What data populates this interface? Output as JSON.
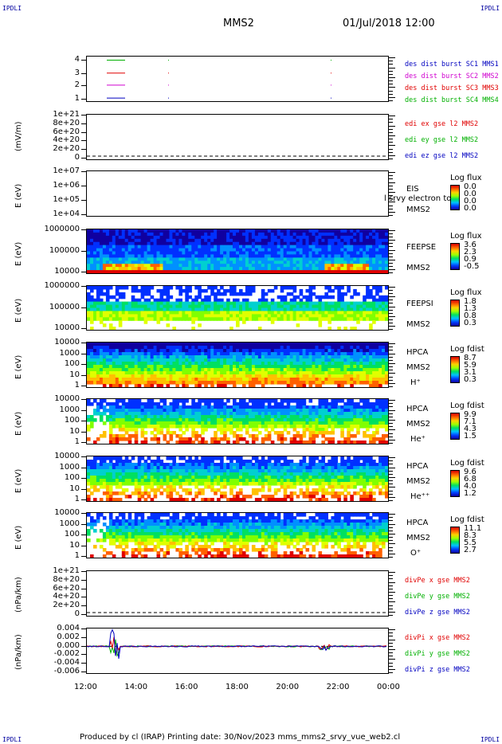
{
  "corner_label": "IPDLI",
  "header": {
    "title": "MMS2",
    "datetime": "01/Jul/2018 12:00"
  },
  "footer": {
    "text": "Produced by cl (IRAP)   Printing date: 30/Nov/2023   mms_mms2_srvy_vue_web2.cl"
  },
  "colors": {
    "red": "#e00000",
    "green": "#00b000",
    "blue": "#0000c0",
    "magenta": "#d000d0"
  },
  "chart_data": {
    "type": "table",
    "x_axis": {
      "ticks": [
        "12:00",
        "14:00",
        "16:00",
        "18:00",
        "20:00",
        "22:00",
        "00:00"
      ],
      "range": [
        "12:00",
        "00:00"
      ]
    },
    "panels": [
      {
        "id": "burst",
        "yticks": [
          "4",
          "3",
          "2",
          "1"
        ],
        "ylim": [
          0.5,
          4.5
        ],
        "legend": [
          {
            "text": "des dist burst SC1 MMS1",
            "color": "#0000c0"
          },
          {
            "text": "des dist burst SC2 MMS2",
            "color": "#d000d0"
          },
          {
            "text": "des dist burst SC3 MMS3",
            "color": "#e00000"
          },
          {
            "text": "des dist burst SC4 MMS4",
            "color": "#00b000"
          }
        ]
      },
      {
        "id": "edi",
        "ylabel": "(mV/m)",
        "yticks": [
          "1e+21",
          "8e+20",
          "6e+20",
          "4e+20",
          "2e+20",
          "0"
        ],
        "legend": [
          {
            "text": "edi ex gse l2 MMS2",
            "color": "#e00000"
          },
          {
            "text": "edi ey gse l2 MMS2",
            "color": "#00b000"
          },
          {
            "text": "edi ez gse l2 MMS2",
            "color": "#0000c0"
          }
        ]
      },
      {
        "id": "eis",
        "ylabel": "E (eV)",
        "yticks": [
          "1e+07",
          "1e+06",
          "1e+05",
          "1e+04"
        ],
        "side": [
          "EIS",
          "MMS2"
        ],
        "overlay": "l srvy electron to",
        "cbar_title": "Log flux",
        "cbar_values": [
          "0.0",
          "0.0",
          "0.0",
          "0.0"
        ]
      },
      {
        "id": "feeps_e",
        "ylabel": "E (eV)",
        "yticks": [
          "1000000",
          "100000",
          "10000"
        ],
        "side": [
          "FEEPSE",
          "MMS2"
        ],
        "cbar_title": "Log flux",
        "cbar_values": [
          "3.6",
          "2.3",
          "0.9",
          "-0.5"
        ]
      },
      {
        "id": "feeps_i",
        "ylabel": "E (eV)",
        "yticks": [
          "1000000",
          "100000",
          "10000"
        ],
        "side": [
          "FEEPSI",
          "MMS2"
        ],
        "cbar_title": "Log flux",
        "cbar_values": [
          "1.8",
          "1.3",
          "0.8",
          "0.3"
        ]
      },
      {
        "id": "hpca_h",
        "ylabel": "E (eV)",
        "yticks": [
          "10000",
          "1000",
          "100",
          "10",
          "1"
        ],
        "side": [
          "HPCA",
          "MMS2",
          "H⁺"
        ],
        "cbar_title": "Log fdist",
        "cbar_values": [
          "8.7",
          "5.9",
          "3.1",
          "0.3"
        ]
      },
      {
        "id": "hpca_he",
        "ylabel": "E (eV)",
        "yticks": [
          "10000",
          "1000",
          "100",
          "10",
          "1"
        ],
        "side": [
          "HPCA",
          "MMS2",
          "He⁺"
        ],
        "cbar_title": "Log fdist",
        "cbar_values": [
          "9.9",
          "7.1",
          "4.3",
          "1.5"
        ]
      },
      {
        "id": "hpca_hepp",
        "ylabel": "E (eV)",
        "yticks": [
          "10000",
          "1000",
          "100",
          "10",
          "1"
        ],
        "side": [
          "HPCA",
          "MMS2",
          "He⁺⁺"
        ],
        "cbar_title": "Log fdist",
        "cbar_values": [
          "9.6",
          "6.8",
          "4.0",
          "1.2"
        ]
      },
      {
        "id": "hpca_o",
        "ylabel": "E (eV)",
        "yticks": [
          "10000",
          "1000",
          "100",
          "10",
          "1"
        ],
        "side": [
          "HPCA",
          "MMS2",
          "O⁺"
        ],
        "cbar_title": "Log fdist",
        "cbar_values": [
          "11.1",
          "8.3",
          "5.5",
          "2.7"
        ]
      },
      {
        "id": "divpe",
        "ylabel": "(nPa/km)",
        "yticks": [
          "1e+21",
          "8e+20",
          "6e+20",
          "4e+20",
          "2e+20",
          "0"
        ],
        "legend": [
          {
            "text": "divPe x gse MMS2",
            "color": "#e00000"
          },
          {
            "text": "divPe y gse MMS2",
            "color": "#00b000"
          },
          {
            "text": "divPe z gse MMS2",
            "color": "#0000c0"
          }
        ]
      },
      {
        "id": "divpi",
        "ylabel": "(nPa/km)",
        "yticks": [
          "0.004",
          "0.002",
          "0.000",
          "-0.002",
          "-0.004",
          "-0.006"
        ],
        "ylim": [
          -0.006,
          0.004
        ],
        "legend": [
          {
            "text": "divPi x gse MMS2",
            "color": "#e00000"
          },
          {
            "text": "divPi y gse MMS2",
            "color": "#00b000"
          },
          {
            "text": "divPi z gse MMS2",
            "color": "#0000c0"
          }
        ]
      }
    ]
  }
}
